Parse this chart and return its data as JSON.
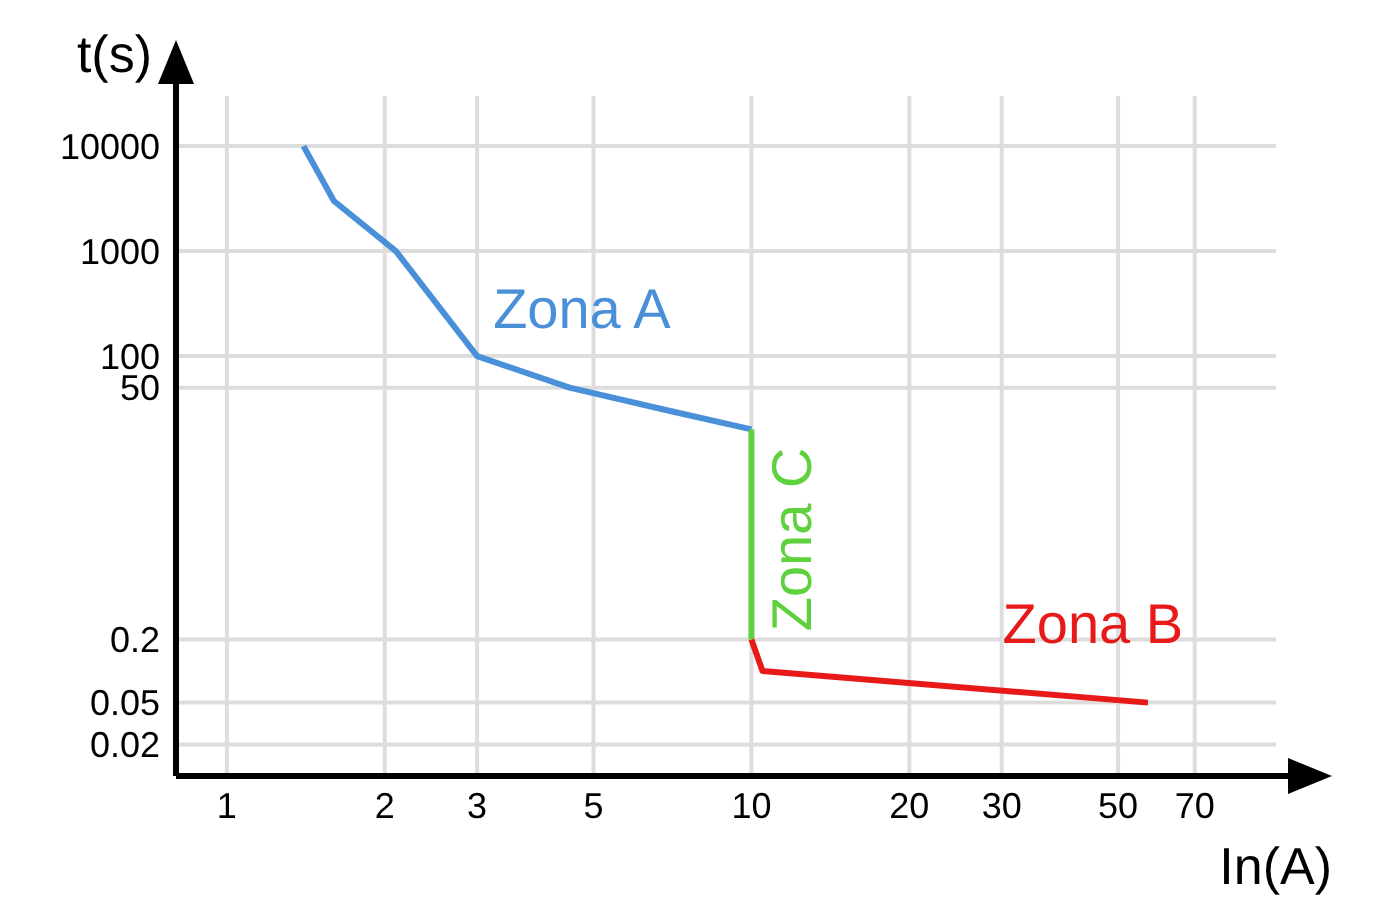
{
  "chart_data": {
    "type": "line",
    "xlabel": "In(A)",
    "ylabel": "t(s)",
    "log": "xy",
    "xlim": [
      0.8,
      100
    ],
    "ylim": [
      0.01,
      30000
    ],
    "xticks": [
      1,
      2,
      3,
      5,
      10,
      20,
      30,
      50,
      70
    ],
    "yticks": [
      0.02,
      0.05,
      0.2,
      50,
      100,
      1000,
      10000
    ],
    "grid": true,
    "marker": "none",
    "line_style": "solid",
    "series": [
      {
        "name": "Zona A",
        "color": "#4a90d9",
        "x": [
          1.4,
          1.6,
          2.1,
          3,
          4.5,
          7,
          10
        ],
        "values": [
          10000,
          3000,
          1000,
          100,
          50,
          30,
          20
        ]
      },
      {
        "name": "Zona C",
        "color": "#5fd13c",
        "x": [
          10,
          10
        ],
        "values": [
          20,
          0.2
        ]
      },
      {
        "name": "Zona B",
        "color": "#e81919",
        "x": [
          10,
          10.5,
          57
        ],
        "values": [
          0.2,
          0.1,
          0.05
        ]
      }
    ]
  }
}
